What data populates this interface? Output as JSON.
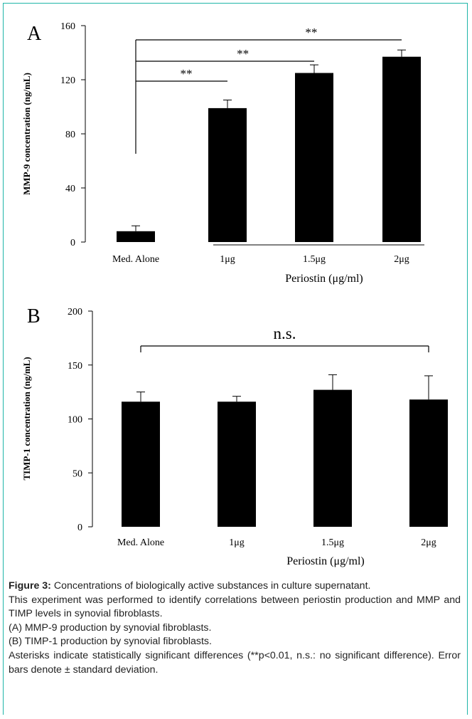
{
  "chart_data": [
    {
      "type": "bar",
      "panel": "A",
      "ylabel": "MMP-9 concentration (ng/mL)",
      "xlabel": "Periostin (μg/ml)",
      "categories": [
        "Med. Alone",
        "1μg",
        "1.5μg",
        "2μg"
      ],
      "values": [
        8,
        99,
        125,
        137
      ],
      "errors": [
        4,
        6,
        6,
        5
      ],
      "ylim": [
        0,
        160
      ],
      "yticks": [
        0,
        40,
        80,
        120,
        160
      ],
      "grid": false,
      "group_underline_from": 1,
      "significance": [
        {
          "from": 0,
          "to": 1,
          "label": "**"
        },
        {
          "from": 0,
          "to": 2,
          "label": "**"
        },
        {
          "from": 0,
          "to": 3,
          "label": "**"
        }
      ]
    },
    {
      "type": "bar",
      "panel": "B",
      "ylabel": "TIMP-1 concentration (ng/mL)",
      "xlabel": "Periostin (μg/ml)",
      "categories": [
        "Med. Alone",
        "1μg",
        "1.5μg",
        "2μg"
      ],
      "values": [
        116,
        116,
        127,
        118
      ],
      "errors": [
        9,
        5,
        14,
        22
      ],
      "ylim": [
        0,
        200
      ],
      "yticks": [
        0,
        50,
        100,
        150,
        200
      ],
      "grid": false,
      "significance": [
        {
          "from": 0,
          "to": 3,
          "label": "n.s."
        }
      ]
    }
  ],
  "caption": {
    "label": "Figure 3:",
    "title": " Concentrations of biologically active substances in culture supernatant.",
    "lines": [
      "This experiment was performed to identify correlations between periostin production and MMP and TIMP levels in synovial fibroblasts.",
      "(A) MMP-9 production by synovial fibroblasts.",
      "(B) TIMP-1 production by synovial fibroblasts.",
      "Asterisks indicate statistically significant differences (**p<0.01, n.s.: no significant difference). Error bars denote ± standard deviation."
    ]
  },
  "colors": {
    "bars": "#000000",
    "border": "#1fb5a8",
    "text": "#222222"
  }
}
